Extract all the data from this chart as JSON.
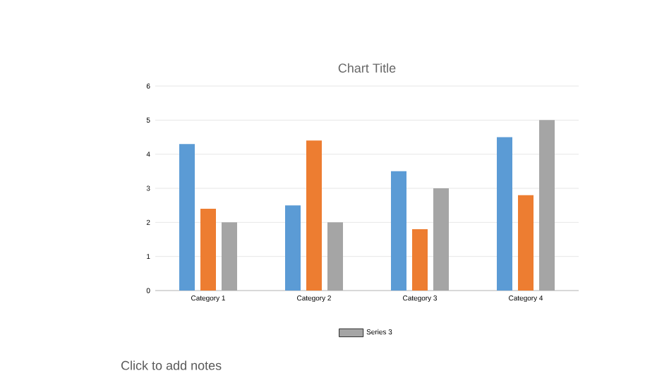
{
  "chart_data": {
    "type": "bar",
    "title": "Chart Title",
    "categories": [
      "Category 1",
      "Category 2",
      "Category 3",
      "Category 4"
    ],
    "series": [
      {
        "color": "#5b9bd5",
        "values": [
          4.3,
          2.5,
          3.5,
          4.5
        ]
      },
      {
        "color": "#ed7d31",
        "values": [
          2.4,
          4.4,
          1.8,
          2.8
        ]
      },
      {
        "name": "Series 3",
        "color": "#a5a5a5",
        "values": [
          2,
          2,
          3,
          5
        ]
      }
    ],
    "ylim": [
      0,
      6
    ],
    "yticks": [
      0,
      1,
      2,
      3,
      4,
      5,
      6
    ],
    "grid": "y",
    "legend": "bottom",
    "annotations": [
      "Click to add notes"
    ]
  }
}
